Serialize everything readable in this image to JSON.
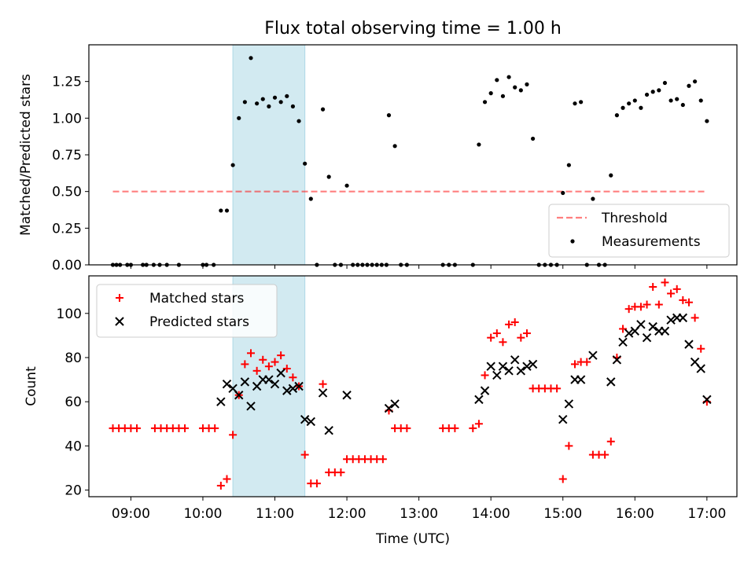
{
  "figure": {
    "title": "Flux total observing time = 1.00 h"
  },
  "colors": {
    "highlight": "#add8e6",
    "threshold": "#ff0000",
    "measurement": "#000000",
    "matched": "#ff0000",
    "predicted": "#000000"
  },
  "chart_data": [
    {
      "type": "scatter",
      "name": "ratio-panel",
      "ylabel": "Matched/Predicted stars",
      "xlabel": "",
      "xlim": [
        "08:25",
        "17:25"
      ],
      "ylim": [
        0,
        1.5
      ],
      "yticks": [
        0.0,
        0.25,
        0.5,
        0.75,
        1.0,
        1.25
      ],
      "ytick_labels": [
        "0.00",
        "0.25",
        "0.50",
        "0.75",
        "1.00",
        "1.25"
      ],
      "highlight_span": [
        "10:25",
        "11:25"
      ],
      "legend": {
        "placement": "lower right",
        "entries": [
          "Threshold",
          "Measurements"
        ]
      },
      "threshold": {
        "name": "Threshold",
        "value": 0.5,
        "x": [
          "08:45",
          "17:00"
        ]
      },
      "series": [
        {
          "name": "Measurements",
          "points": [
            [
              "08:45",
              0
            ],
            [
              "08:48",
              0
            ],
            [
              "08:51",
              0
            ],
            [
              "08:57",
              0
            ],
            [
              "09:00",
              0
            ],
            [
              "09:10",
              0
            ],
            [
              "09:13",
              0
            ],
            [
              "09:19",
              0
            ],
            [
              "09:24",
              0
            ],
            [
              "09:30",
              0
            ],
            [
              "09:40",
              0
            ],
            [
              "10:00",
              0
            ],
            [
              "10:03",
              0
            ],
            [
              "10:09",
              0
            ],
            [
              "10:15",
              0.37
            ],
            [
              "10:20",
              0.37
            ],
            [
              "10:25",
              0.68
            ],
            [
              "10:30",
              1.0
            ],
            [
              "10:35",
              1.11
            ],
            [
              "10:40",
              1.41
            ],
            [
              "10:45",
              1.1
            ],
            [
              "10:50",
              1.13
            ],
            [
              "10:55",
              1.08
            ],
            [
              "11:00",
              1.14
            ],
            [
              "11:05",
              1.11
            ],
            [
              "11:10",
              1.15
            ],
            [
              "11:15",
              1.08
            ],
            [
              "11:20",
              0.98
            ],
            [
              "11:25",
              0.69
            ],
            [
              "11:30",
              0.45
            ],
            [
              "11:35",
              0
            ],
            [
              "11:40",
              1.06
            ],
            [
              "11:45",
              0.6
            ],
            [
              "11:50",
              0
            ],
            [
              "11:55",
              0
            ],
            [
              "12:00",
              0.54
            ],
            [
              "12:05",
              0
            ],
            [
              "12:09",
              0
            ],
            [
              "12:13",
              0
            ],
            [
              "12:17",
              0
            ],
            [
              "12:21",
              0
            ],
            [
              "12:25",
              0
            ],
            [
              "12:29",
              0
            ],
            [
              "12:33",
              0
            ],
            [
              "12:35",
              1.02
            ],
            [
              "12:40",
              0.81
            ],
            [
              "12:45",
              0
            ],
            [
              "12:50",
              0
            ],
            [
              "13:20",
              0
            ],
            [
              "13:25",
              0
            ],
            [
              "13:30",
              0
            ],
            [
              "13:45",
              0
            ],
            [
              "13:50",
              0.82
            ],
            [
              "13:55",
              1.11
            ],
            [
              "14:00",
              1.17
            ],
            [
              "14:05",
              1.26
            ],
            [
              "14:10",
              1.15
            ],
            [
              "14:15",
              1.28
            ],
            [
              "14:20",
              1.21
            ],
            [
              "14:25",
              1.19
            ],
            [
              "14:30",
              1.23
            ],
            [
              "14:35",
              0.86
            ],
            [
              "14:40",
              0
            ],
            [
              "14:45",
              0
            ],
            [
              "14:50",
              0
            ],
            [
              "14:55",
              0
            ],
            [
              "15:00",
              0.49
            ],
            [
              "15:05",
              0.68
            ],
            [
              "15:10",
              1.1
            ],
            [
              "15:15",
              1.11
            ],
            [
              "15:20",
              0
            ],
            [
              "15:25",
              0.45
            ],
            [
              "15:30",
              0
            ],
            [
              "15:35",
              0
            ],
            [
              "15:40",
              0.61
            ],
            [
              "15:45",
              1.02
            ],
            [
              "15:50",
              1.07
            ],
            [
              "15:55",
              1.1
            ],
            [
              "16:00",
              1.12
            ],
            [
              "16:05",
              1.07
            ],
            [
              "16:10",
              1.16
            ],
            [
              "16:15",
              1.18
            ],
            [
              "16:20",
              1.19
            ],
            [
              "16:25",
              1.24
            ],
            [
              "16:30",
              1.12
            ],
            [
              "16:35",
              1.13
            ],
            [
              "16:40",
              1.09
            ],
            [
              "16:45",
              1.22
            ],
            [
              "16:50",
              1.25
            ],
            [
              "16:55",
              1.12
            ],
            [
              "17:00",
              0.98
            ]
          ]
        }
      ]
    },
    {
      "type": "scatter",
      "name": "count-panel",
      "ylabel": "Count",
      "xlabel": "Time (UTC)",
      "xlim": [
        "08:25",
        "17:25"
      ],
      "ylim": [
        17,
        117
      ],
      "yticks": [
        20,
        40,
        60,
        80,
        100
      ],
      "ytick_labels": [
        "20",
        "40",
        "60",
        "80",
        "100"
      ],
      "xticks": [
        "09:00",
        "10:00",
        "11:00",
        "12:00",
        "13:00",
        "14:00",
        "15:00",
        "16:00",
        "17:00"
      ],
      "highlight_span": [
        "10:25",
        "11:25"
      ],
      "legend": {
        "placement": "upper left",
        "entries": [
          "Matched stars",
          "Predicted stars"
        ]
      },
      "series": [
        {
          "name": "Matched stars",
          "marker": "plus",
          "points": [
            [
              "08:45",
              48
            ],
            [
              "08:50",
              48
            ],
            [
              "08:55",
              48
            ],
            [
              "09:00",
              48
            ],
            [
              "09:05",
              48
            ],
            [
              "09:20",
              48
            ],
            [
              "09:25",
              48
            ],
            [
              "09:30",
              48
            ],
            [
              "09:35",
              48
            ],
            [
              "09:40",
              48
            ],
            [
              "09:45",
              48
            ],
            [
              "10:00",
              48
            ],
            [
              "10:05",
              48
            ],
            [
              "10:10",
              48
            ],
            [
              "10:15",
              22
            ],
            [
              "10:20",
              25
            ],
            [
              "10:25",
              45
            ],
            [
              "10:30",
              63
            ],
            [
              "10:35",
              77
            ],
            [
              "10:40",
              82
            ],
            [
              "10:45",
              74
            ],
            [
              "10:50",
              79
            ],
            [
              "10:55",
              76
            ],
            [
              "11:00",
              78
            ],
            [
              "11:05",
              81
            ],
            [
              "11:10",
              75
            ],
            [
              "11:15",
              71
            ],
            [
              "11:20",
              67
            ],
            [
              "11:25",
              36
            ],
            [
              "11:30",
              23
            ],
            [
              "11:35",
              23
            ],
            [
              "11:40",
              68
            ],
            [
              "11:45",
              28
            ],
            [
              "11:50",
              28
            ],
            [
              "11:55",
              28
            ],
            [
              "12:00",
              34
            ],
            [
              "12:05",
              34
            ],
            [
              "12:10",
              34
            ],
            [
              "12:15",
              34
            ],
            [
              "12:20",
              34
            ],
            [
              "12:25",
              34
            ],
            [
              "12:30",
              34
            ],
            [
              "12:35",
              56
            ],
            [
              "12:40",
              48
            ],
            [
              "12:45",
              48
            ],
            [
              "12:50",
              48
            ],
            [
              "13:20",
              48
            ],
            [
              "13:25",
              48
            ],
            [
              "13:30",
              48
            ],
            [
              "13:45",
              48
            ],
            [
              "13:50",
              50
            ],
            [
              "13:55",
              72
            ],
            [
              "14:00",
              89
            ],
            [
              "14:05",
              91
            ],
            [
              "14:10",
              87
            ],
            [
              "14:15",
              95
            ],
            [
              "14:20",
              96
            ],
            [
              "14:25",
              89
            ],
            [
              "14:30",
              91
            ],
            [
              "14:35",
              66
            ],
            [
              "14:40",
              66
            ],
            [
              "14:45",
              66
            ],
            [
              "14:50",
              66
            ],
            [
              "14:55",
              66
            ],
            [
              "15:00",
              25
            ],
            [
              "15:05",
              40
            ],
            [
              "15:10",
              77
            ],
            [
              "15:15",
              78
            ],
            [
              "15:20",
              78
            ],
            [
              "15:25",
              36
            ],
            [
              "15:30",
              36
            ],
            [
              "15:35",
              36
            ],
            [
              "15:40",
              42
            ],
            [
              "15:45",
              80
            ],
            [
              "15:50",
              93
            ],
            [
              "15:55",
              102
            ],
            [
              "16:00",
              103
            ],
            [
              "16:05",
              103
            ],
            [
              "16:10",
              104
            ],
            [
              "16:15",
              112
            ],
            [
              "16:20",
              104
            ],
            [
              "16:25",
              114
            ],
            [
              "16:30",
              109
            ],
            [
              "16:35",
              111
            ],
            [
              "16:40",
              106
            ],
            [
              "16:45",
              105
            ],
            [
              "16:50",
              98
            ],
            [
              "16:55",
              84
            ],
            [
              "17:00",
              60
            ]
          ]
        },
        {
          "name": "Predicted stars",
          "marker": "x",
          "points": [
            [
              "10:15",
              60
            ],
            [
              "10:20",
              68
            ],
            [
              "10:25",
              66
            ],
            [
              "10:30",
              63
            ],
            [
              "10:35",
              69
            ],
            [
              "10:40",
              58
            ],
            [
              "10:45",
              67
            ],
            [
              "10:50",
              70
            ],
            [
              "10:55",
              70
            ],
            [
              "11:00",
              68
            ],
            [
              "11:05",
              73
            ],
            [
              "11:10",
              65
            ],
            [
              "11:15",
              66
            ],
            [
              "11:20",
              67
            ],
            [
              "11:25",
              52
            ],
            [
              "11:30",
              51
            ],
            [
              "11:40",
              64
            ],
            [
              "11:45",
              47
            ],
            [
              "12:00",
              63
            ],
            [
              "12:35",
              57
            ],
            [
              "12:40",
              59
            ],
            [
              "13:50",
              61
            ],
            [
              "13:55",
              65
            ],
            [
              "14:00",
              76
            ],
            [
              "14:05",
              72
            ],
            [
              "14:10",
              76
            ],
            [
              "14:15",
              74
            ],
            [
              "14:20",
              79
            ],
            [
              "14:25",
              74
            ],
            [
              "14:30",
              76
            ],
            [
              "14:35",
              77
            ],
            [
              "15:00",
              52
            ],
            [
              "15:05",
              59
            ],
            [
              "15:10",
              70
            ],
            [
              "15:15",
              70
            ],
            [
              "15:25",
              81
            ],
            [
              "15:40",
              69
            ],
            [
              "15:45",
              79
            ],
            [
              "15:50",
              87
            ],
            [
              "15:55",
              91
            ],
            [
              "16:00",
              92
            ],
            [
              "16:05",
              95
            ],
            [
              "16:10",
              89
            ],
            [
              "16:15",
              94
            ],
            [
              "16:20",
              92
            ],
            [
              "16:25",
              92
            ],
            [
              "16:30",
              97
            ],
            [
              "16:35",
              98
            ],
            [
              "16:40",
              98
            ],
            [
              "16:45",
              86
            ],
            [
              "16:50",
              78
            ],
            [
              "16:55",
              75
            ],
            [
              "17:00",
              61
            ]
          ]
        }
      ]
    }
  ]
}
